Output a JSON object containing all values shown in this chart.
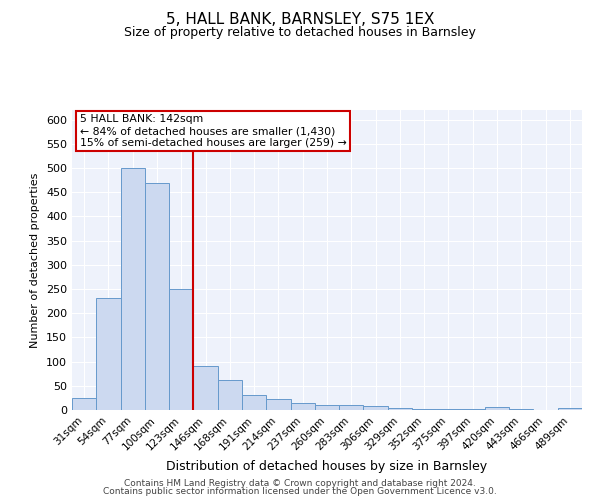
{
  "title": "5, HALL BANK, BARNSLEY, S75 1EX",
  "subtitle": "Size of property relative to detached houses in Barnsley",
  "xlabel": "Distribution of detached houses by size in Barnsley",
  "ylabel": "Number of detached properties",
  "categories": [
    "31sqm",
    "54sqm",
    "77sqm",
    "100sqm",
    "123sqm",
    "146sqm",
    "168sqm",
    "191sqm",
    "214sqm",
    "237sqm",
    "260sqm",
    "283sqm",
    "306sqm",
    "329sqm",
    "352sqm",
    "375sqm",
    "397sqm",
    "420sqm",
    "443sqm",
    "466sqm",
    "489sqm"
  ],
  "values": [
    25,
    232,
    500,
    470,
    250,
    90,
    62,
    30,
    22,
    14,
    11,
    10,
    8,
    4,
    3,
    3,
    3,
    6,
    3,
    0,
    5
  ],
  "bar_color": "#ccd9f0",
  "bar_edge_color": "#6699cc",
  "red_line_index": 5,
  "annotation_line1": "5 HALL BANK: 142sqm",
  "annotation_line2": "← 84% of detached houses are smaller (1,430)",
  "annotation_line3": "15% of semi-detached houses are larger (259) →",
  "annotation_box_color": "#ffffff",
  "annotation_box_edge_color": "#cc0000",
  "red_line_color": "#cc0000",
  "ylim": [
    0,
    620
  ],
  "yticks": [
    0,
    50,
    100,
    150,
    200,
    250,
    300,
    350,
    400,
    450,
    500,
    550,
    600
  ],
  "footnote1": "Contains HM Land Registry data © Crown copyright and database right 2024.",
  "footnote2": "Contains public sector information licensed under the Open Government Licence v3.0.",
  "bg_color": "#eef2fb",
  "title_fontsize": 11,
  "subtitle_fontsize": 9,
  "annotation_fontsize": 7.8,
  "ylabel_fontsize": 8,
  "xlabel_fontsize": 9,
  "tick_fontsize": 7.5,
  "footnote_fontsize": 6.5
}
